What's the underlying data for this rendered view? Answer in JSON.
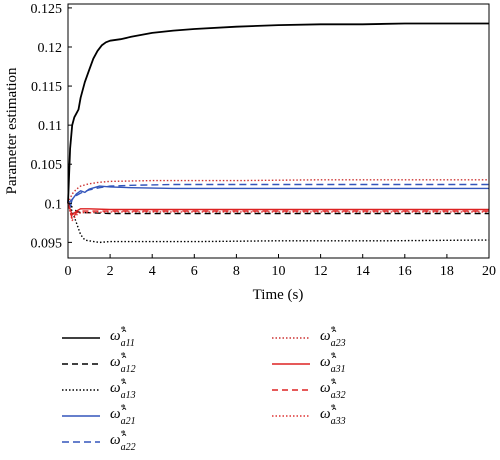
{
  "chart_data": {
    "type": "line",
    "xlabel": "Time (s)",
    "ylabel": "Parameter estimation",
    "xlim": [
      0,
      20
    ],
    "ylim": [
      0.093,
      0.1255
    ],
    "xticks": [
      "0",
      "2",
      "4",
      "6",
      "8",
      "10",
      "12",
      "14",
      "16",
      "18",
      "20"
    ],
    "yticks": [
      "0.095",
      "0.1",
      "0.105",
      "0.11",
      "0.115",
      "0.12",
      "0.125"
    ],
    "grid": false,
    "legend_position": "below",
    "series": [
      {
        "name": "ω̂*a11",
        "base": "ω̂",
        "sup": "*",
        "sub": "a11",
        "color": "#000000",
        "dash": "solid",
        "x": [
          0,
          0.1,
          0.2,
          0.3,
          0.4,
          0.5,
          0.6,
          0.8,
          1.0,
          1.2,
          1.4,
          1.6,
          1.8,
          2.0,
          2.5,
          3,
          4,
          5,
          6,
          8,
          10,
          12,
          14,
          16,
          18,
          20
        ],
        "y": [
          0.1,
          0.107,
          0.11,
          0.111,
          0.1115,
          0.112,
          0.1135,
          0.1155,
          0.117,
          0.1185,
          0.1195,
          0.1202,
          0.1206,
          0.1208,
          0.121,
          0.1213,
          0.1218,
          0.1221,
          0.1223,
          0.1226,
          0.1228,
          0.1229,
          0.1229,
          0.123,
          0.123,
          0.123
        ]
      },
      {
        "name": "ω̂*a12",
        "base": "ω̂",
        "sup": "*",
        "sub": "a12",
        "color": "#000000",
        "dash": "6,4",
        "x": [
          0,
          0.2,
          0.4,
          0.6,
          1,
          2,
          4,
          8,
          12,
          16,
          20
        ],
        "y": [
          0.1,
          0.0995,
          0.099,
          0.0988,
          0.0988,
          0.0987,
          0.0987,
          0.0987,
          0.0987,
          0.0987,
          0.0987
        ]
      },
      {
        "name": "ω̂*a13",
        "base": "ω̂",
        "sup": "*",
        "sub": "a13",
        "color": "#000000",
        "dash": "1.5,2",
        "x": [
          0,
          0.2,
          0.4,
          0.6,
          0.8,
          1,
          1.5,
          2,
          3,
          6,
          10,
          15,
          20
        ],
        "y": [
          0.1,
          0.099,
          0.0975,
          0.096,
          0.0953,
          0.0952,
          0.095,
          0.0951,
          0.0951,
          0.0951,
          0.0952,
          0.0952,
          0.0953
        ]
      },
      {
        "name": "ω̂*a21",
        "base": "ω̂",
        "sup": "*",
        "sub": "a21",
        "color": "#3355bb",
        "dash": "solid",
        "x": [
          0,
          0.1,
          0.2,
          0.4,
          0.6,
          0.8,
          1,
          1.5,
          2,
          3,
          5,
          10,
          15,
          20
        ],
        "y": [
          0.1,
          0.0995,
          0.1005,
          0.1012,
          0.1016,
          0.1014,
          0.1018,
          0.1022,
          0.1021,
          0.102,
          0.1019,
          0.1019,
          0.1019,
          0.1019
        ]
      },
      {
        "name": "ω̂*a22",
        "base": "ω̂",
        "sup": "*",
        "sub": "a22",
        "color": "#3355bb",
        "dash": "7,4",
        "x": [
          0,
          0.2,
          0.4,
          0.6,
          1,
          1.5,
          2,
          3,
          5,
          10,
          15,
          20
        ],
        "y": [
          0.1,
          0.1005,
          0.101,
          0.1013,
          0.1017,
          0.102,
          0.1022,
          0.1023,
          0.1024,
          0.1024,
          0.1024,
          0.1024
        ]
      },
      {
        "name": "ω̂*a23",
        "base": "ω̂",
        "sup": "*",
        "sub": "a23",
        "color": "#cc3333",
        "dash": "1.5,2",
        "x": [
          0,
          0.2,
          0.4,
          0.6,
          1,
          1.5,
          2,
          4,
          8,
          12,
          16,
          20
        ],
        "y": [
          0.1,
          0.1012,
          0.1018,
          0.1022,
          0.1025,
          0.1027,
          0.1028,
          0.1029,
          0.1029,
          0.103,
          0.103,
          0.103
        ]
      },
      {
        "name": "ω̂*a31",
        "base": "ω̂",
        "sup": "*",
        "sub": "a31",
        "color": "#dd2222",
        "dash": "solid",
        "x": [
          0,
          0.2,
          0.4,
          0.6,
          1,
          2,
          4,
          8,
          12,
          16,
          20
        ],
        "y": [
          0.1,
          0.0985,
          0.099,
          0.0993,
          0.0993,
          0.0992,
          0.0992,
          0.0992,
          0.0992,
          0.0992,
          0.0992
        ]
      },
      {
        "name": "ω̂*a32",
        "base": "ω̂",
        "sup": "*",
        "sub": "a32",
        "color": "#dd2222",
        "dash": "6,4",
        "x": [
          0,
          0.2,
          0.4,
          0.6,
          1,
          2,
          4,
          8,
          12,
          16,
          20
        ],
        "y": [
          0.1,
          0.098,
          0.0988,
          0.099,
          0.099,
          0.099,
          0.099,
          0.099,
          0.099,
          0.099,
          0.099
        ]
      },
      {
        "name": "ω̂*a33",
        "base": "ω̂",
        "sup": "*",
        "sub": "a33",
        "color": "#dd3333",
        "dash": "1.5,2",
        "x": [
          0,
          0.2,
          0.4,
          0.6,
          1,
          2,
          4,
          8,
          12,
          16,
          20
        ],
        "y": [
          0.1,
          0.0978,
          0.0985,
          0.0988,
          0.0988,
          0.0989,
          0.0989,
          0.0989,
          0.0989,
          0.0989,
          0.0989
        ]
      }
    ]
  }
}
